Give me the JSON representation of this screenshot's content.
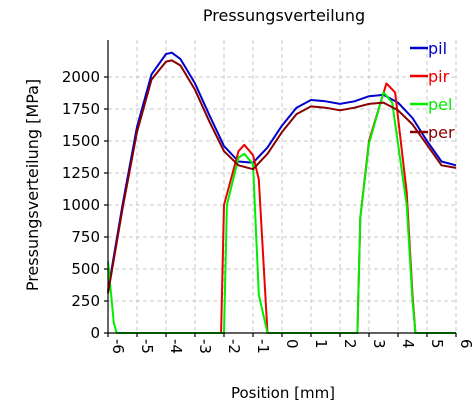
{
  "chart_data": {
    "type": "line",
    "title": "Pressungsverteilung",
    "xlabel": "Position [mm]",
    "ylabel": "Pressungsverteilung [MPa]",
    "xlim": [
      -6,
      6
    ],
    "ylim": [
      0,
      2200
    ],
    "xticks": [
      -6,
      -5,
      -4,
      -3,
      -2,
      -1,
      0,
      1,
      2,
      3,
      4,
      5,
      6
    ],
    "yticks": [
      0,
      250,
      500,
      750,
      1000,
      1250,
      1500,
      1750,
      2000
    ],
    "grid": true,
    "legend_position": "top-right",
    "series": [
      {
        "name": "pil",
        "color": "#0000cc",
        "x": [
          -6.0,
          -5.5,
          -5.0,
          -4.5,
          -4.0,
          -3.8,
          -3.5,
          -3.0,
          -2.5,
          -2.0,
          -1.5,
          -1.0,
          -0.5,
          0.0,
          0.5,
          1.0,
          1.5,
          2.0,
          2.5,
          3.0,
          3.5,
          4.0,
          4.5,
          5.0,
          5.5,
          6.0
        ],
        "y": [
          330,
          1000,
          1610,
          2020,
          2180,
          2190,
          2140,
          1950,
          1700,
          1460,
          1340,
          1330,
          1450,
          1620,
          1760,
          1820,
          1810,
          1790,
          1810,
          1850,
          1860,
          1800,
          1680,
          1500,
          1340,
          1310
        ]
      },
      {
        "name": "pir",
        "color": "#ee0000",
        "x": [
          -3.25,
          -2.1,
          -2.0,
          -1.5,
          -1.3,
          -1.0,
          -0.8,
          -0.5,
          0.0,
          2.6,
          2.7,
          3.0,
          3.6,
          3.9,
          4.3,
          4.5,
          4.6
        ],
        "y": [
          0,
          0,
          1000,
          1420,
          1470,
          1390,
          1200,
          0,
          0,
          0,
          900,
          1500,
          1950,
          1880,
          1100,
          300,
          0
        ]
      },
      {
        "name": "pel",
        "color": "#00ee00",
        "x": [
          -6.0,
          -5.8,
          -5.7,
          -2.0,
          -1.9,
          -1.5,
          -1.3,
          -1.0,
          -0.8,
          -0.5,
          2.6,
          2.7,
          3.0,
          3.5,
          3.8,
          4.3,
          4.5,
          4.6,
          6.0
        ],
        "y": [
          560,
          80,
          0,
          0,
          1000,
          1370,
          1400,
          1320,
          300,
          0,
          0,
          900,
          1480,
          1880,
          1800,
          1000,
          250,
          0,
          0
        ]
      },
      {
        "name": "per",
        "color": "#880000",
        "x": [
          -6.0,
          -5.5,
          -5.0,
          -4.5,
          -4.0,
          -3.8,
          -3.5,
          -3.0,
          -2.5,
          -2.0,
          -1.5,
          -1.0,
          -0.5,
          0.0,
          0.5,
          1.0,
          1.5,
          2.0,
          2.5,
          3.0,
          3.5,
          4.0,
          4.5,
          5.0,
          5.5,
          6.0
        ],
        "y": [
          310,
          970,
          1570,
          1980,
          2120,
          2130,
          2090,
          1900,
          1650,
          1420,
          1310,
          1280,
          1400,
          1570,
          1710,
          1770,
          1760,
          1740,
          1760,
          1790,
          1800,
          1740,
          1630,
          1470,
          1310,
          1290
        ]
      }
    ]
  }
}
